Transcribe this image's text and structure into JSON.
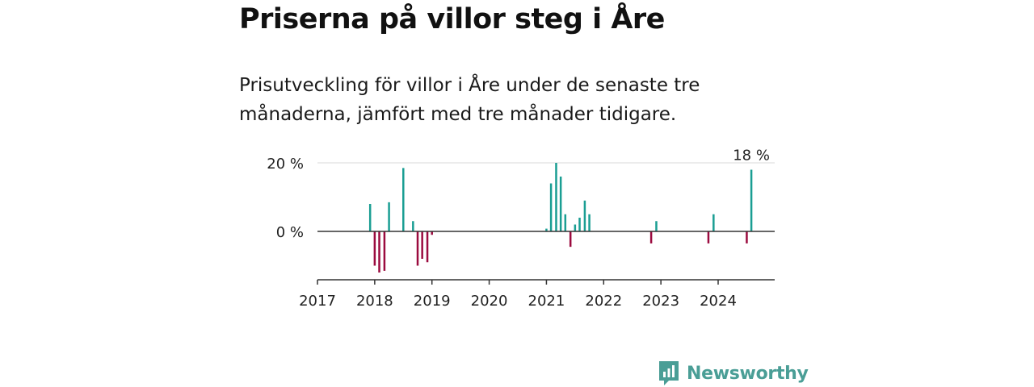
{
  "title": "Priserna på villor steg i Åre",
  "subtitle": "Prisutveckling för villor i Åre under de senaste tre månaderna, jämfört med tre månader tidigare.",
  "brand": {
    "name": "Newsworthy",
    "color": "#4a9e96"
  },
  "colors": {
    "positive": "#1a9e93",
    "negative": "#9b0b3f"
  },
  "chart_data": {
    "type": "bar",
    "ylim": [
      -14,
      20
    ],
    "y_ticks": [
      {
        "value": 0,
        "label": "0 %"
      },
      {
        "value": 20,
        "label": "20 %"
      }
    ],
    "x_ticks": [
      "2017",
      "2018",
      "2019",
      "2020",
      "2021",
      "2022",
      "2023",
      "2024"
    ],
    "annotation": {
      "x": 2024.58,
      "value": 18,
      "label": "18 %"
    },
    "points": [
      {
        "x": 2017.92,
        "value": 8
      },
      {
        "x": 2018.0,
        "value": -10
      },
      {
        "x": 2018.08,
        "value": -12
      },
      {
        "x": 2018.17,
        "value": -11.5
      },
      {
        "x": 2018.25,
        "value": 8.5
      },
      {
        "x": 2018.5,
        "value": 18.5
      },
      {
        "x": 2018.67,
        "value": 3
      },
      {
        "x": 2018.75,
        "value": -10
      },
      {
        "x": 2018.83,
        "value": -8
      },
      {
        "x": 2018.92,
        "value": -9
      },
      {
        "x": 2019.0,
        "value": -1
      },
      {
        "x": 2021.0,
        "value": 0.8
      },
      {
        "x": 2021.08,
        "value": 14
      },
      {
        "x": 2021.17,
        "value": 20
      },
      {
        "x": 2021.25,
        "value": 16
      },
      {
        "x": 2021.33,
        "value": 5
      },
      {
        "x": 2021.42,
        "value": -4.5
      },
      {
        "x": 2021.5,
        "value": 2
      },
      {
        "x": 2021.58,
        "value": 4
      },
      {
        "x": 2021.67,
        "value": 9
      },
      {
        "x": 2021.75,
        "value": 5
      },
      {
        "x": 2022.83,
        "value": -3.5
      },
      {
        "x": 2022.92,
        "value": 3
      },
      {
        "x": 2023.83,
        "value": -3.5
      },
      {
        "x": 2023.92,
        "value": 5
      },
      {
        "x": 2024.5,
        "value": -3.5
      },
      {
        "x": 2024.58,
        "value": 18
      }
    ]
  }
}
